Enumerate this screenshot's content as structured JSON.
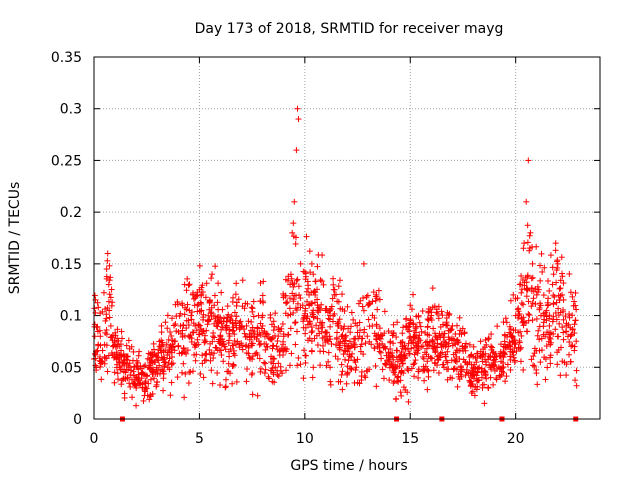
{
  "chart_data": {
    "type": "scatter",
    "title": "Day 173 of 2018, SRMTID for receiver mayg",
    "xlabel": "GPS time / hours",
    "ylabel": "SRMTID / TECUs",
    "xlim": [
      0,
      24
    ],
    "ylim": [
      0,
      0.35
    ],
    "x_ticks": [
      "0",
      "5",
      "10",
      "15",
      "20"
    ],
    "y_ticks": [
      "0",
      "0.05",
      "0.1",
      "0.15",
      "0.2",
      "0.25",
      "0.3",
      "0.35"
    ],
    "grid": true,
    "marker": "+",
    "color": "#ff0000",
    "series": [
      {
        "name": "SRMTID",
        "points": [
          [
            0.0,
            0.058
          ],
          [
            0.1,
            0.065
          ],
          [
            0.2,
            0.072
          ],
          [
            0.3,
            0.08
          ],
          [
            0.4,
            0.055
          ],
          [
            0.5,
            0.06
          ],
          [
            0.6,
            0.145
          ],
          [
            0.65,
            0.16
          ],
          [
            0.7,
            0.13
          ],
          [
            0.8,
            0.09
          ],
          [
            0.9,
            0.07
          ],
          [
            1.0,
            0.06
          ],
          [
            1.1,
            0.078
          ],
          [
            1.2,
            0.05
          ],
          [
            1.3,
            0.06
          ],
          [
            1.5,
            0.045
          ],
          [
            1.6,
            0.04
          ],
          [
            1.7,
            0.05
          ],
          [
            1.8,
            0.038
          ],
          [
            1.9,
            0.042
          ],
          [
            2.0,
            0.03
          ],
          [
            2.1,
            0.048
          ],
          [
            2.2,
            0.035
          ],
          [
            2.3,
            0.045
          ],
          [
            2.4,
            0.028
          ],
          [
            2.5,
            0.042
          ],
          [
            2.6,
            0.05
          ],
          [
            2.7,
            0.038
          ],
          [
            2.8,
            0.045
          ],
          [
            2.9,
            0.055
          ],
          [
            3.0,
            0.06
          ],
          [
            3.1,
            0.075
          ],
          [
            3.2,
            0.09
          ],
          [
            3.3,
            0.065
          ],
          [
            3.4,
            0.055
          ],
          [
            3.5,
            0.05
          ],
          [
            3.6,
            0.065
          ],
          [
            3.7,
            0.06
          ],
          [
            3.8,
            0.075
          ],
          [
            3.9,
            0.085
          ],
          [
            4.0,
            0.07
          ],
          [
            4.1,
            0.09
          ],
          [
            4.2,
            0.11
          ],
          [
            4.3,
            0.13
          ],
          [
            4.4,
            0.095
          ],
          [
            4.5,
            0.08
          ],
          [
            4.6,
            0.1
          ],
          [
            4.7,
            0.12
          ],
          [
            4.8,
            0.09
          ],
          [
            4.9,
            0.11
          ],
          [
            5.0,
            0.125
          ],
          [
            5.1,
            0.105
          ],
          [
            5.2,
            0.085
          ],
          [
            5.3,
            0.075
          ],
          [
            5.4,
            0.095
          ],
          [
            5.5,
            0.115
          ],
          [
            5.6,
            0.14
          ],
          [
            5.7,
            0.11
          ],
          [
            5.8,
            0.09
          ],
          [
            5.9,
            0.075
          ],
          [
            6.0,
            0.08
          ],
          [
            6.2,
            0.07
          ],
          [
            6.4,
            0.065
          ],
          [
            6.6,
            0.085
          ],
          [
            6.8,
            0.075
          ],
          [
            7.0,
            0.09
          ],
          [
            7.2,
            0.07
          ],
          [
            7.4,
            0.08
          ],
          [
            7.6,
            0.085
          ],
          [
            7.8,
            0.1
          ],
          [
            8.0,
            0.09
          ],
          [
            8.2,
            0.07
          ],
          [
            8.4,
            0.055
          ],
          [
            8.5,
            0.045
          ],
          [
            8.6,
            0.05
          ],
          [
            8.8,
            0.065
          ],
          [
            9.0,
            0.08
          ],
          [
            9.2,
            0.1
          ],
          [
            9.3,
            0.13
          ],
          [
            9.4,
            0.18
          ],
          [
            9.5,
            0.21
          ],
          [
            9.6,
            0.26
          ],
          [
            9.65,
            0.3
          ],
          [
            9.7,
            0.29
          ],
          [
            9.8,
            0.15
          ],
          [
            9.9,
            0.11
          ],
          [
            10.0,
            0.1
          ],
          [
            10.2,
            0.12
          ],
          [
            10.4,
            0.14
          ],
          [
            10.6,
            0.11
          ],
          [
            10.8,
            0.09
          ],
          [
            11.0,
            0.08
          ],
          [
            11.2,
            0.1
          ],
          [
            11.4,
            0.12
          ],
          [
            11.6,
            0.09
          ],
          [
            11.8,
            0.075
          ],
          [
            12.0,
            0.07
          ],
          [
            12.2,
            0.06
          ],
          [
            12.4,
            0.055
          ],
          [
            12.6,
            0.08
          ],
          [
            12.8,
            0.15
          ],
          [
            13.0,
            0.11
          ],
          [
            13.2,
            0.09
          ],
          [
            13.4,
            0.12
          ],
          [
            13.6,
            0.08
          ],
          [
            13.8,
            0.07
          ],
          [
            14.0,
            0.06
          ],
          [
            14.2,
            0.05
          ],
          [
            14.4,
            0.04
          ],
          [
            14.6,
            0.06
          ],
          [
            14.8,
            0.09
          ],
          [
            15.0,
            0.11
          ],
          [
            15.2,
            0.08
          ],
          [
            15.4,
            0.07
          ],
          [
            15.6,
            0.06
          ],
          [
            15.8,
            0.075
          ],
          [
            16.0,
            0.1
          ],
          [
            16.2,
            0.08
          ],
          [
            16.4,
            0.06
          ],
          [
            16.6,
            0.05
          ],
          [
            16.8,
            0.07
          ],
          [
            17.0,
            0.09
          ],
          [
            17.2,
            0.06
          ],
          [
            17.4,
            0.05
          ],
          [
            17.6,
            0.07
          ],
          [
            17.8,
            0.06
          ],
          [
            18.0,
            0.05
          ],
          [
            18.2,
            0.045
          ],
          [
            18.4,
            0.04
          ],
          [
            18.6,
            0.055
          ],
          [
            18.8,
            0.05
          ],
          [
            19.0,
            0.06
          ],
          [
            19.2,
            0.05
          ],
          [
            19.4,
            0.06
          ],
          [
            19.6,
            0.07
          ],
          [
            19.8,
            0.08
          ],
          [
            20.0,
            0.1
          ],
          [
            20.2,
            0.13
          ],
          [
            20.4,
            0.17
          ],
          [
            20.5,
            0.21
          ],
          [
            20.6,
            0.25
          ],
          [
            20.7,
            0.18
          ],
          [
            20.8,
            0.15
          ],
          [
            21.0,
            0.12
          ],
          [
            21.2,
            0.1
          ],
          [
            21.4,
            0.08
          ],
          [
            21.6,
            0.09
          ],
          [
            21.8,
            0.14
          ],
          [
            21.9,
            0.17
          ],
          [
            22.0,
            0.15
          ],
          [
            22.2,
            0.12
          ],
          [
            22.4,
            0.09
          ],
          [
            22.6,
            0.08
          ],
          [
            22.8,
            0.07
          ]
        ],
        "envelope": [
          [
            0.0,
            0.07
          ],
          [
            0.5,
            0.075
          ],
          [
            0.7,
            0.1
          ],
          [
            1.0,
            0.065
          ],
          [
            1.5,
            0.05
          ],
          [
            2.5,
            0.04
          ],
          [
            3.0,
            0.055
          ],
          [
            3.5,
            0.06
          ],
          [
            4.0,
            0.075
          ],
          [
            4.5,
            0.09
          ],
          [
            5.0,
            0.1
          ],
          [
            5.5,
            0.095
          ],
          [
            6.0,
            0.08
          ],
          [
            6.5,
            0.075
          ],
          [
            7.0,
            0.08
          ],
          [
            7.5,
            0.078
          ],
          [
            8.0,
            0.08
          ],
          [
            8.5,
            0.07
          ],
          [
            9.0,
            0.085
          ],
          [
            9.5,
            0.12
          ],
          [
            10.0,
            0.105
          ],
          [
            10.5,
            0.11
          ],
          [
            11.0,
            0.085
          ],
          [
            11.5,
            0.09
          ],
          [
            12.0,
            0.07
          ],
          [
            12.5,
            0.065
          ],
          [
            13.0,
            0.09
          ],
          [
            13.5,
            0.085
          ],
          [
            14.0,
            0.06
          ],
          [
            14.5,
            0.055
          ],
          [
            15.0,
            0.075
          ],
          [
            15.5,
            0.07
          ],
          [
            16.0,
            0.075
          ],
          [
            16.5,
            0.07
          ],
          [
            17.0,
            0.065
          ],
          [
            17.5,
            0.06
          ],
          [
            18.0,
            0.05
          ],
          [
            18.5,
            0.05
          ],
          [
            19.0,
            0.055
          ],
          [
            19.5,
            0.065
          ],
          [
            20.0,
            0.085
          ],
          [
            20.5,
            0.12
          ],
          [
            21.0,
            0.11
          ],
          [
            21.5,
            0.09
          ],
          [
            22.0,
            0.11
          ],
          [
            22.5,
            0.085
          ],
          [
            22.9,
            0.08
          ]
        ]
      }
    ],
    "zero_markers_x": [
      1.35,
      14.35,
      16.5,
      19.35,
      22.85
    ]
  }
}
